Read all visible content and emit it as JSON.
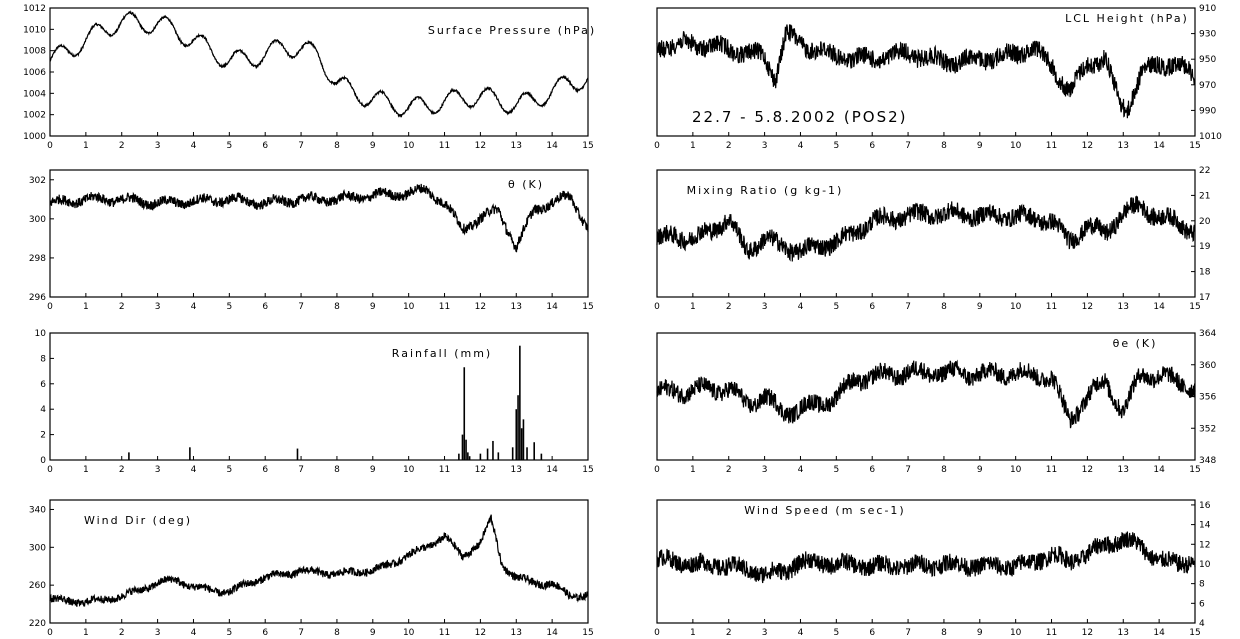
{
  "figure": {
    "period_label": "22.7 - 5.8.2002 (POS2)"
  },
  "chart_data": [
    {
      "id": "surface-pressure",
      "type": "line",
      "title": "Surface Pressure (hPa)",
      "xlim": [
        0,
        15
      ],
      "ylim": [
        1000,
        1012
      ],
      "yaxis_side": "left",
      "y_ticks": [
        "1000",
        "1002",
        "1004",
        "1006",
        "1008",
        "1010",
        "1012"
      ],
      "x_ticks": [
        "0",
        "1",
        "2",
        "3",
        "4",
        "5",
        "6",
        "7",
        "8",
        "9",
        "10",
        "11",
        "12",
        "13",
        "14",
        "15"
      ],
      "series": [
        {
          "x": [
            0,
            0.5,
            1,
            1.5,
            2,
            2.5,
            3,
            3.5,
            4,
            4.5,
            5,
            5.5,
            6,
            6.5,
            7,
            7.5,
            8,
            8.5,
            9,
            9.5,
            10,
            10.5,
            11,
            11.5,
            12,
            12.5,
            13,
            13.5,
            14,
            14.5,
            15
          ],
          "values": [
            1007,
            1008,
            1009,
            1010,
            1010.8,
            1010.5,
            1010.6,
            1009.8,
            1009,
            1008,
            1007,
            1007.3,
            1007.6,
            1008.4,
            1008.2,
            1007.5,
            1005,
            1004,
            1003.5,
            1003,
            1002.7,
            1002.8,
            1003.3,
            1003.5,
            1003.8,
            1003.3,
            1002.9,
            1003.4,
            1004.2,
            1005,
            1005.4
          ],
          "diurnal_amplitude": 0.9,
          "noise": 0.1
        }
      ]
    },
    {
      "id": "lcl-height",
      "type": "line",
      "title": "LCL Height (hPa)",
      "xlim": [
        0,
        15
      ],
      "ylim": [
        910,
        1010
      ],
      "inverted": true,
      "yaxis_side": "right",
      "y_ticks": [
        "910",
        "930",
        "950",
        "970",
        "990",
        "1010"
      ],
      "x_ticks": [
        "0",
        "1",
        "2",
        "3",
        "4",
        "5",
        "6",
        "7",
        "8",
        "9",
        "10",
        "11",
        "12",
        "13",
        "14",
        "15"
      ],
      "series": [
        {
          "x": [
            0,
            1,
            2,
            3,
            3.3,
            3.6,
            4,
            5,
            6,
            7,
            8,
            9,
            10,
            10.5,
            11,
            11.5,
            12,
            12.5,
            12.9,
            13.1,
            13.5,
            14,
            14.5,
            15
          ],
          "values": [
            940,
            938,
            942,
            948,
            965,
            930,
            938,
            948,
            950,
            945,
            952,
            950,
            946,
            940,
            955,
            975,
            955,
            948,
            985,
            990,
            960,
            955,
            952,
            965
          ],
          "diurnal_amplitude": 3,
          "noise": 7
        }
      ]
    },
    {
      "id": "theta",
      "type": "line",
      "title": "θ (K)",
      "xlim": [
        0,
        15
      ],
      "ylim": [
        296,
        302.5
      ],
      "yaxis_side": "left",
      "y_ticks": [
        "296",
        "298",
        "300",
        "302"
      ],
      "x_ticks": [
        "0",
        "1",
        "2",
        "3",
        "4",
        "5",
        "6",
        "7",
        "8",
        "9",
        "10",
        "11",
        "12",
        "13",
        "14",
        "15"
      ],
      "series": [
        {
          "x": [
            0,
            1,
            2,
            3,
            4,
            5,
            6,
            7,
            8,
            9,
            10,
            10.5,
            11,
            11.5,
            12,
            12.5,
            13,
            13.5,
            14,
            14.5,
            15
          ],
          "values": [
            300.8,
            301,
            301,
            300.8,
            300.9,
            301,
            300.8,
            301,
            301,
            301.2,
            301.3,
            301.5,
            300.8,
            299.5,
            300,
            300.5,
            298.5,
            300.5,
            300.8,
            301.2,
            299.5
          ],
          "diurnal_amplitude": 0.15,
          "noise": 0.25
        }
      ]
    },
    {
      "id": "mixing-ratio",
      "type": "line",
      "title": "Mixing Ratio (g kg-1)",
      "xlim": [
        0,
        15
      ],
      "ylim": [
        17,
        22
      ],
      "yaxis_side": "right",
      "y_ticks": [
        "17",
        "18",
        "19",
        "20",
        "21",
        "22"
      ],
      "x_ticks": [
        "0",
        "1",
        "2",
        "3",
        "4",
        "5",
        "6",
        "7",
        "8",
        "9",
        "10",
        "11",
        "12",
        "13",
        "14",
        "15"
      ],
      "series": [
        {
          "x": [
            0,
            0.5,
            1,
            1.5,
            2,
            2.5,
            3,
            3.5,
            4,
            4.5,
            5,
            5.5,
            6,
            7,
            8,
            9,
            10,
            10.5,
            11,
            11.5,
            12,
            12.5,
            13,
            13.5,
            14,
            14.5,
            15
          ],
          "values": [
            19.3,
            19.4,
            19.3,
            19.6,
            20.1,
            18.8,
            19.3,
            19.0,
            18.8,
            19.0,
            19.2,
            19.5,
            20.0,
            20.2,
            20.3,
            20.2,
            20.2,
            20.1,
            20.0,
            19.2,
            19.8,
            19.5,
            20.3,
            20.6,
            20.1,
            20.0,
            19.5
          ],
          "diurnal_amplitude": 0.15,
          "noise": 0.35
        }
      ]
    },
    {
      "id": "rainfall",
      "type": "bar",
      "title": "Rainfall (mm)",
      "xlim": [
        0,
        15
      ],
      "ylim": [
        0,
        10
      ],
      "yaxis_side": "left",
      "y_ticks": [
        "0",
        "2",
        "4",
        "6",
        "8",
        "10"
      ],
      "x_ticks": [
        "0",
        "1",
        "2",
        "3",
        "4",
        "5",
        "6",
        "7",
        "8",
        "9",
        "10",
        "11",
        "12",
        "13",
        "14",
        "15"
      ],
      "series": [
        {
          "x": [
            2.2,
            3.9,
            6.9,
            11.4,
            11.5,
            11.55,
            11.6,
            11.65,
            11.7,
            12.0,
            12.2,
            12.35,
            12.5,
            12.9,
            13.0,
            13.05,
            13.1,
            13.15,
            13.2,
            13.3,
            13.5,
            13.7
          ],
          "values": [
            0.6,
            1.0,
            0.9,
            0.5,
            2.0,
            7.3,
            1.6,
            0.6,
            0.3,
            0.5,
            0.9,
            1.5,
            0.6,
            1.0,
            4.0,
            5.1,
            9.0,
            2.5,
            3.2,
            1.0,
            1.4,
            0.5
          ]
        }
      ]
    },
    {
      "id": "theta-e",
      "type": "line",
      "title": "θe (K)",
      "xlim": [
        0,
        15
      ],
      "ylim": [
        348,
        364
      ],
      "yaxis_side": "right",
      "y_ticks": [
        "348",
        "352",
        "356",
        "360",
        "364"
      ],
      "x_ticks": [
        "0",
        "1",
        "2",
        "3",
        "4",
        "5",
        "6",
        "7",
        "8",
        "9",
        "10",
        "11",
        "12",
        "13",
        "14",
        "15"
      ],
      "series": [
        {
          "x": [
            0,
            1,
            2,
            2.5,
            3,
            3.5,
            4,
            4.5,
            5,
            5.5,
            6,
            7,
            8,
            9,
            10,
            11,
            11.5,
            12,
            12.5,
            13,
            13.5,
            14,
            14.5,
            15
          ],
          "values": [
            356.5,
            356.8,
            357,
            355,
            356,
            354,
            354.5,
            355,
            356,
            358,
            358.5,
            359,
            359,
            358.8,
            359,
            358.5,
            353,
            356,
            358,
            354,
            359,
            358.5,
            358,
            357
          ],
          "diurnal_amplitude": 0.6,
          "noise": 1.1
        }
      ]
    },
    {
      "id": "wind-dir",
      "type": "line",
      "title": "Wind Dir (deg)",
      "xlim": [
        0,
        15
      ],
      "ylim": [
        220,
        350
      ],
      "yaxis_side": "left",
      "y_ticks": [
        "220",
        "260",
        "300",
        "340"
      ],
      "x_ticks": [
        "0",
        "1",
        "2",
        "3",
        "4",
        "5",
        "6",
        "7",
        "8",
        "9",
        "10",
        "11",
        "12",
        "13",
        "14",
        "15"
      ],
      "series": [
        {
          "x": [
            0,
            1,
            2,
            3,
            3.5,
            4,
            5,
            5.5,
            6,
            7,
            8,
            9,
            9.5,
            10,
            10.5,
            11,
            11.5,
            12,
            12.3,
            12.6,
            13,
            13.5,
            14,
            14.5,
            15
          ],
          "values": [
            245,
            242,
            248,
            262,
            266,
            258,
            252,
            262,
            268,
            275,
            272,
            276,
            282,
            292,
            300,
            312,
            290,
            305,
            330,
            282,
            268,
            262,
            262,
            248,
            250
          ],
          "diurnal_amplitude": 2,
          "noise": 4
        }
      ]
    },
    {
      "id": "wind-speed",
      "type": "line",
      "title": "Wind Speed (m sec-1)",
      "xlim": [
        0,
        15
      ],
      "ylim": [
        4,
        16.5
      ],
      "yaxis_side": "right",
      "y_ticks": [
        "4",
        "6",
        "8",
        "10",
        "12",
        "14",
        "16"
      ],
      "x_ticks": [
        "0",
        "1",
        "2",
        "3",
        "4",
        "5",
        "6",
        "7",
        "8",
        "9",
        "10",
        "11",
        "12",
        "13",
        "14",
        "15"
      ],
      "series": [
        {
          "x": [
            0,
            1,
            2,
            3,
            3.5,
            4,
            5,
            6,
            7,
            8,
            9,
            10,
            10.5,
            11,
            11.5,
            12,
            12.5,
            13,
            13.5,
            14,
            14.5,
            15
          ],
          "values": [
            10.5,
            10,
            9.8,
            9,
            9.2,
            10.2,
            10,
            9.8,
            9.8,
            10,
            9.8,
            9.8,
            10.2,
            11,
            10.2,
            11,
            12,
            12.5,
            11.8,
            10.3,
            10.1,
            10.3
          ],
          "diurnal_amplitude": 0.3,
          "noise": 0.9
        }
      ]
    }
  ]
}
